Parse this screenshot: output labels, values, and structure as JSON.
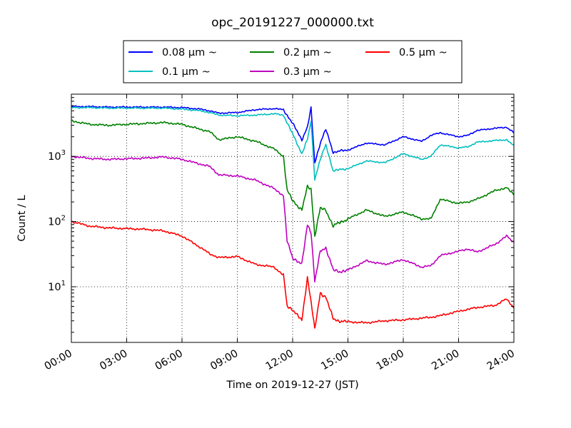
{
  "chart_data": {
    "type": "line",
    "title": "opc_20191227_000000.txt",
    "xlabel": "Time on 2019-12-27 (JST)",
    "ylabel": "Count / L",
    "y_scale": "log",
    "ylim": [
      1.4,
      9000
    ],
    "xlim": [
      "00:00",
      "24:00"
    ],
    "x_unit": "hours",
    "x_ticks": [
      "00:00",
      "03:00",
      "06:00",
      "09:00",
      "12:00",
      "15:00",
      "18:00",
      "21:00",
      "24:00"
    ],
    "y_ticks": [
      {
        "value": 10,
        "base": "10",
        "exp": "1"
      },
      {
        "value": 100,
        "base": "10",
        "exp": "2"
      },
      {
        "value": 1000,
        "base": "10",
        "exp": "3"
      }
    ],
    "grid": true,
    "legend_position": "top-center (above plot)",
    "series": [
      {
        "name": "0.08 μm ~",
        "color": "#0000ff",
        "x": [
          0,
          1,
          2,
          3,
          4,
          5,
          6,
          7,
          7.5,
          8,
          9,
          10,
          11,
          11.5,
          12,
          12.5,
          12.8,
          13,
          13.2,
          13.5,
          13.8,
          14.2,
          14.5,
          15,
          16,
          17,
          18,
          19,
          19.5,
          20,
          21,
          21.5,
          22,
          23,
          23.6,
          24
        ],
        "values": [
          5800,
          5800,
          5700,
          5700,
          5700,
          5700,
          5600,
          5300,
          5000,
          4600,
          4700,
          5200,
          5400,
          5200,
          3200,
          1800,
          2800,
          5500,
          800,
          1600,
          2600,
          1150,
          1200,
          1250,
          1600,
          1500,
          2000,
          1700,
          2100,
          2300,
          2000,
          2100,
          2500,
          2700,
          2800,
          2300
        ]
      },
      {
        "name": "0.1 μm ~",
        "color": "#00bfbf",
        "x": [
          0,
          1,
          2,
          3,
          4,
          5,
          6,
          7,
          7.5,
          8,
          9,
          10,
          11,
          11.5,
          12,
          12.5,
          12.8,
          13,
          13.2,
          13.5,
          13.8,
          14.2,
          14.5,
          15,
          16,
          17,
          18,
          19,
          19.5,
          20,
          21,
          21.5,
          22,
          23,
          23.6,
          24
        ],
        "values": [
          5600,
          5600,
          5500,
          5500,
          5500,
          5500,
          5300,
          5000,
          4700,
          4300,
          4200,
          4300,
          4500,
          4300,
          2200,
          1100,
          1800,
          3500,
          450,
          900,
          1500,
          600,
          620,
          650,
          850,
          800,
          1100,
          900,
          1000,
          1500,
          1350,
          1400,
          1650,
          1750,
          1800,
          1450
        ]
      },
      {
        "name": "0.2 μm ~",
        "color": "#008000",
        "x": [
          0,
          1,
          2,
          3,
          4,
          5,
          6,
          7,
          7.5,
          8,
          9,
          10,
          11,
          11.5,
          11.7,
          12,
          12.5,
          12.8,
          13,
          13.2,
          13.5,
          13.8,
          14.2,
          14.5,
          15,
          16,
          17,
          18,
          19,
          19.5,
          20,
          21,
          21.5,
          22,
          23,
          23.6,
          24
        ],
        "values": [
          3500,
          3100,
          3000,
          3100,
          3200,
          3300,
          3100,
          2600,
          2400,
          1800,
          2000,
          1700,
          1300,
          1000,
          300,
          210,
          150,
          340,
          320,
          60,
          160,
          150,
          85,
          95,
          110,
          150,
          120,
          140,
          110,
          110,
          220,
          190,
          200,
          220,
          300,
          330,
          260
        ]
      },
      {
        "name": "0.3 μm ~",
        "color": "#bf00bf",
        "x": [
          0,
          1,
          2,
          3,
          4,
          5,
          6,
          7,
          7.5,
          8,
          9,
          10,
          11,
          11.5,
          11.7,
          12,
          12.5,
          12.8,
          13,
          13.2,
          13.5,
          13.8,
          14.2,
          14.5,
          15,
          16,
          17,
          18,
          19,
          19.5,
          20,
          21,
          21.5,
          22,
          23,
          23.6,
          24
        ],
        "values": [
          1000,
          930,
          900,
          920,
          940,
          980,
          900,
          760,
          700,
          520,
          500,
          430,
          320,
          250,
          50,
          28,
          22,
          90,
          70,
          12,
          35,
          40,
          18,
          17,
          18,
          25,
          22,
          26,
          20,
          21,
          30,
          35,
          38,
          34,
          45,
          60,
          48
        ]
      },
      {
        "name": "0.5 μm ~",
        "color": "#ff0000",
        "x": [
          0,
          1,
          2,
          3,
          4,
          5,
          6,
          7,
          7.5,
          8,
          9,
          10,
          11,
          11.5,
          11.7,
          12,
          12.5,
          12.8,
          13,
          13.2,
          13.5,
          13.8,
          14.2,
          14.5,
          15,
          16,
          17,
          18,
          19,
          19.5,
          20,
          21,
          21.5,
          22,
          23,
          23.6,
          24
        ],
        "values": [
          100,
          85,
          80,
          78,
          76,
          72,
          60,
          40,
          32,
          28,
          29,
          22,
          20,
          15,
          5,
          4.5,
          3.0,
          14,
          6,
          2.2,
          8,
          7,
          3.2,
          3.0,
          2.9,
          2.8,
          3.0,
          3.1,
          3.3,
          3.4,
          3.6,
          4.2,
          4.5,
          4.8,
          5.2,
          6.5,
          4.8
        ]
      }
    ]
  }
}
